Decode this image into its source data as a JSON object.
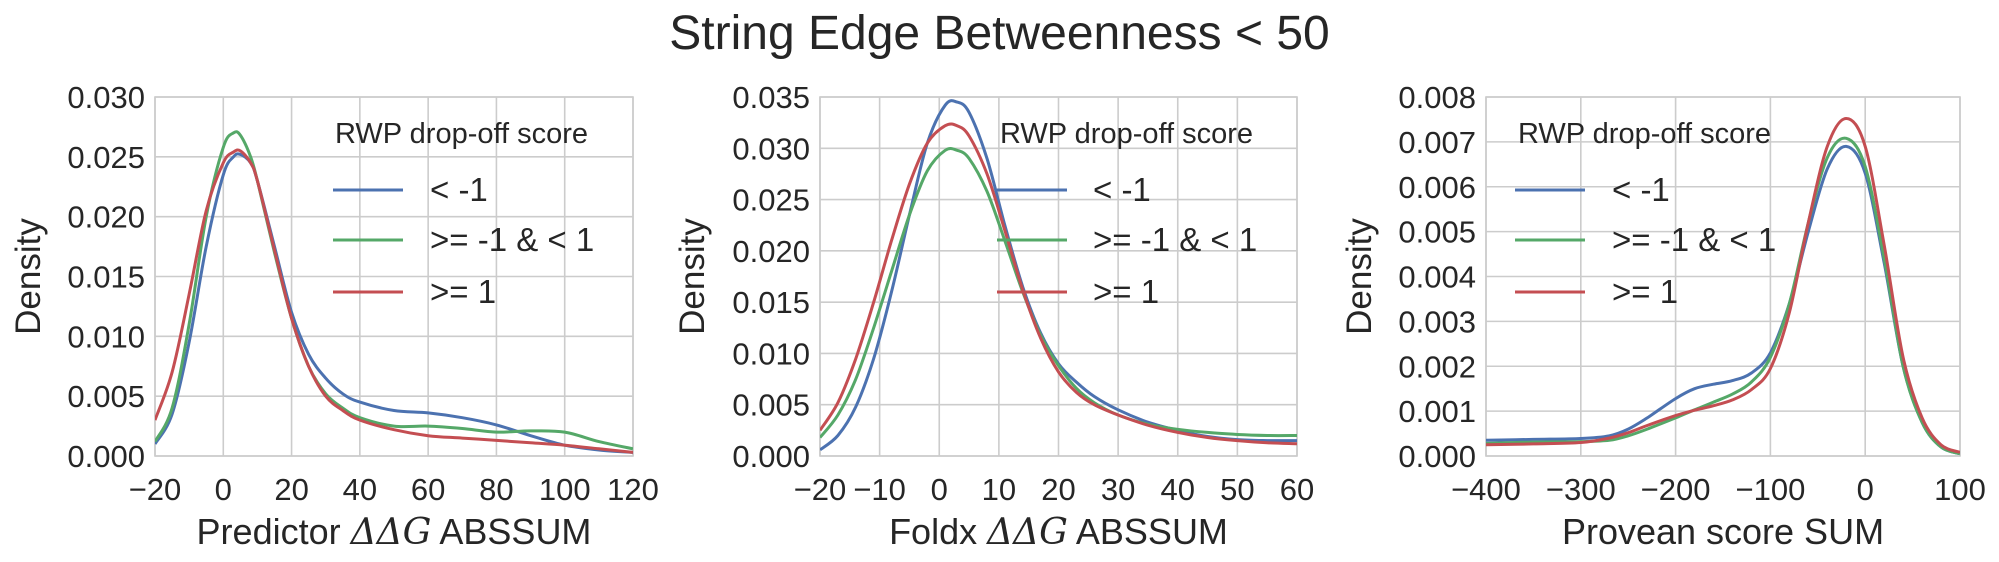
{
  "title": "String Edge Betweenness < 50",
  "colors": {
    "series_lt_neg1": "#4c72b0",
    "series_mid": "#55a868",
    "series_ge1": "#c44e52",
    "grid": "#cccccc",
    "text": "#262626"
  },
  "chart_data": [
    {
      "type": "line",
      "xlabel_prefix": "Predictor ",
      "xlabel_math": "ΔΔG",
      "xlabel_suffix": " ABSSUM",
      "ylabel": "Density",
      "xlim": [
        -20,
        120
      ],
      "ylim": [
        0,
        0.03
      ],
      "xticks": [
        -20,
        0,
        20,
        40,
        60,
        80,
        100,
        120
      ],
      "xtick_labels": [
        "−20",
        "0",
        "20",
        "40",
        "60",
        "80",
        "100",
        "120"
      ],
      "yticks": [
        0,
        0.005,
        0.01,
        0.015,
        0.02,
        0.025,
        0.03
      ],
      "ytick_labels": [
        "0.000",
        "0.005",
        "0.010",
        "0.015",
        "0.020",
        "0.025",
        "0.030"
      ],
      "grid": true,
      "legend_title": "RWP drop-off score",
      "legend_position": "upper-right",
      "series": [
        {
          "name": "< -1",
          "color": "#4c72b0",
          "x": [
            -20,
            -15,
            -10,
            -5,
            0,
            3,
            5,
            8,
            10,
            15,
            20,
            25,
            30,
            35,
            40,
            50,
            60,
            70,
            80,
            90,
            100,
            110,
            120
          ],
          "y": [
            0.001,
            0.0035,
            0.0095,
            0.0175,
            0.0235,
            0.025,
            0.0252,
            0.0245,
            0.023,
            0.0175,
            0.012,
            0.0085,
            0.0065,
            0.0052,
            0.0045,
            0.0038,
            0.0036,
            0.0032,
            0.0026,
            0.0017,
            0.0009,
            0.0005,
            0.0003
          ]
        },
        {
          "name": ">= -1 & < 1",
          "color": "#55a868",
          "x": [
            -20,
            -15,
            -10,
            -5,
            0,
            3,
            5,
            8,
            10,
            15,
            20,
            25,
            30,
            35,
            40,
            50,
            60,
            70,
            80,
            90,
            100,
            110,
            120
          ],
          "y": [
            0.0012,
            0.004,
            0.011,
            0.02,
            0.0258,
            0.027,
            0.0268,
            0.025,
            0.023,
            0.017,
            0.0115,
            0.0075,
            0.0052,
            0.004,
            0.0032,
            0.0025,
            0.0025,
            0.0023,
            0.002,
            0.0021,
            0.002,
            0.0012,
            0.0006
          ]
        },
        {
          "name": ">= 1",
          "color": "#c44e52",
          "x": [
            -20,
            -15,
            -10,
            -5,
            0,
            3,
            5,
            8,
            10,
            15,
            20,
            25,
            30,
            35,
            40,
            50,
            60,
            70,
            80,
            90,
            100,
            110,
            120
          ],
          "y": [
            0.003,
            0.007,
            0.0135,
            0.0205,
            0.0245,
            0.0254,
            0.0255,
            0.0245,
            0.023,
            0.0172,
            0.0115,
            0.0075,
            0.005,
            0.0038,
            0.003,
            0.0022,
            0.0017,
            0.0015,
            0.0013,
            0.0011,
            0.0009,
            0.0006,
            0.0003
          ]
        }
      ]
    },
    {
      "type": "line",
      "xlabel_prefix": "Foldx ",
      "xlabel_math": "ΔΔG",
      "xlabel_suffix": " ABSSUM",
      "ylabel": "Density",
      "xlim": [
        -20,
        60
      ],
      "ylim": [
        0,
        0.035
      ],
      "xticks": [
        -20,
        -10,
        0,
        10,
        20,
        30,
        40,
        50,
        60
      ],
      "xtick_labels": [
        "−20",
        "−10",
        "0",
        "10",
        "20",
        "30",
        "40",
        "50",
        "60"
      ],
      "yticks": [
        0,
        0.005,
        0.01,
        0.015,
        0.02,
        0.025,
        0.03,
        0.035
      ],
      "ytick_labels": [
        "0.000",
        "0.005",
        "0.010",
        "0.015",
        "0.020",
        "0.025",
        "0.030",
        "0.035"
      ],
      "grid": true,
      "legend_title": "RWP drop-off score",
      "legend_position": "upper-right",
      "series": [
        {
          "name": "< -1",
          "color": "#4c72b0",
          "x": [
            -20,
            -17,
            -14,
            -11,
            -8,
            -5,
            -2,
            1,
            3,
            5,
            8,
            11,
            14,
            17,
            20,
            23,
            26,
            30,
            35,
            40,
            45,
            50,
            55,
            60
          ],
          "y": [
            0.0006,
            0.002,
            0.0048,
            0.0095,
            0.016,
            0.0235,
            0.0305,
            0.0342,
            0.0345,
            0.0335,
            0.029,
            0.0225,
            0.0165,
            0.012,
            0.009,
            0.0072,
            0.0058,
            0.0045,
            0.0033,
            0.0025,
            0.0019,
            0.0016,
            0.0015,
            0.0015
          ]
        },
        {
          "name": ">= -1 & < 1",
          "color": "#55a868",
          "x": [
            -20,
            -17,
            -14,
            -11,
            -8,
            -5,
            -2,
            1,
            3,
            5,
            8,
            11,
            14,
            17,
            20,
            23,
            26,
            30,
            35,
            40,
            45,
            50,
            55,
            60
          ],
          "y": [
            0.0018,
            0.004,
            0.0075,
            0.0125,
            0.018,
            0.0235,
            0.0278,
            0.0298,
            0.0298,
            0.029,
            0.0258,
            0.021,
            0.016,
            0.0118,
            0.0088,
            0.0066,
            0.0052,
            0.004,
            0.0031,
            0.0026,
            0.0023,
            0.0021,
            0.002,
            0.002
          ]
        },
        {
          "name": ">= 1",
          "color": "#c44e52",
          "x": [
            -20,
            -17,
            -14,
            -11,
            -8,
            -5,
            -2,
            1,
            3,
            5,
            8,
            11,
            14,
            17,
            20,
            23,
            26,
            30,
            35,
            40,
            45,
            50,
            55,
            60
          ],
          "y": [
            0.0025,
            0.0052,
            0.0095,
            0.015,
            0.021,
            0.0265,
            0.0305,
            0.0322,
            0.0322,
            0.0312,
            0.0275,
            0.022,
            0.0162,
            0.0115,
            0.0082,
            0.0062,
            0.005,
            0.004,
            0.003,
            0.0023,
            0.0018,
            0.0015,
            0.0013,
            0.0012
          ]
        }
      ]
    },
    {
      "type": "line",
      "xlabel_prefix": "Provean score SUM",
      "xlabel_math": "",
      "xlabel_suffix": "",
      "ylabel": "Density",
      "xlim": [
        -400,
        100
      ],
      "ylim": [
        0,
        0.008
      ],
      "xticks": [
        -400,
        -300,
        -200,
        -100,
        0,
        100
      ],
      "xtick_labels": [
        "−400",
        "−300",
        "−200",
        "−100",
        "0",
        "100"
      ],
      "yticks": [
        0,
        0.001,
        0.002,
        0.003,
        0.004,
        0.005,
        0.006,
        0.007,
        0.008
      ],
      "ytick_labels": [
        "0.000",
        "0.001",
        "0.002",
        "0.003",
        "0.004",
        "0.005",
        "0.006",
        "0.007",
        "0.008"
      ],
      "grid": true,
      "legend_title": "RWP drop-off score",
      "legend_position": "upper-left",
      "series": [
        {
          "name": "< -1",
          "color": "#4c72b0",
          "x": [
            -400,
            -350,
            -300,
            -270,
            -250,
            -230,
            -200,
            -180,
            -160,
            -140,
            -120,
            -100,
            -80,
            -60,
            -40,
            -20,
            0,
            20,
            40,
            60,
            80,
            100
          ],
          "y": [
            0.00035,
            0.00037,
            0.00039,
            0.00045,
            0.0006,
            0.00085,
            0.00128,
            0.0015,
            0.0016,
            0.00168,
            0.00185,
            0.0023,
            0.0034,
            0.005,
            0.0064,
            0.0069,
            0.0063,
            0.0043,
            0.002,
            0.00075,
            0.0002,
            5e-05
          ]
        },
        {
          "name": ">= -1 & < 1",
          "color": "#55a868",
          "x": [
            -400,
            -350,
            -300,
            -270,
            -250,
            -230,
            -200,
            -180,
            -160,
            -140,
            -120,
            -100,
            -80,
            -60,
            -40,
            -20,
            0,
            20,
            40,
            60,
            80,
            100
          ],
          "y": [
            0.00028,
            0.00031,
            0.00032,
            0.00035,
            0.00045,
            0.0006,
            0.00085,
            0.00103,
            0.0012,
            0.00138,
            0.00165,
            0.0022,
            0.0034,
            0.0052,
            0.00665,
            0.00708,
            0.00645,
            0.0044,
            0.002,
            0.00075,
            0.0002,
            5e-05
          ]
        },
        {
          "name": ">= 1",
          "color": "#c44e52",
          "x": [
            -400,
            -350,
            -300,
            -270,
            -250,
            -230,
            -200,
            -180,
            -160,
            -140,
            -120,
            -100,
            -80,
            -60,
            -40,
            -20,
            0,
            20,
            40,
            60,
            80,
            100
          ],
          "y": [
            0.00025,
            0.00027,
            0.0003,
            0.0004,
            0.00052,
            0.00068,
            0.0009,
            0.00102,
            0.00112,
            0.00125,
            0.00148,
            0.00195,
            0.0032,
            0.0052,
            0.0069,
            0.00752,
            0.0069,
            0.0047,
            0.0022,
            0.00085,
            0.00025,
            8e-05
          ]
        }
      ]
    }
  ]
}
